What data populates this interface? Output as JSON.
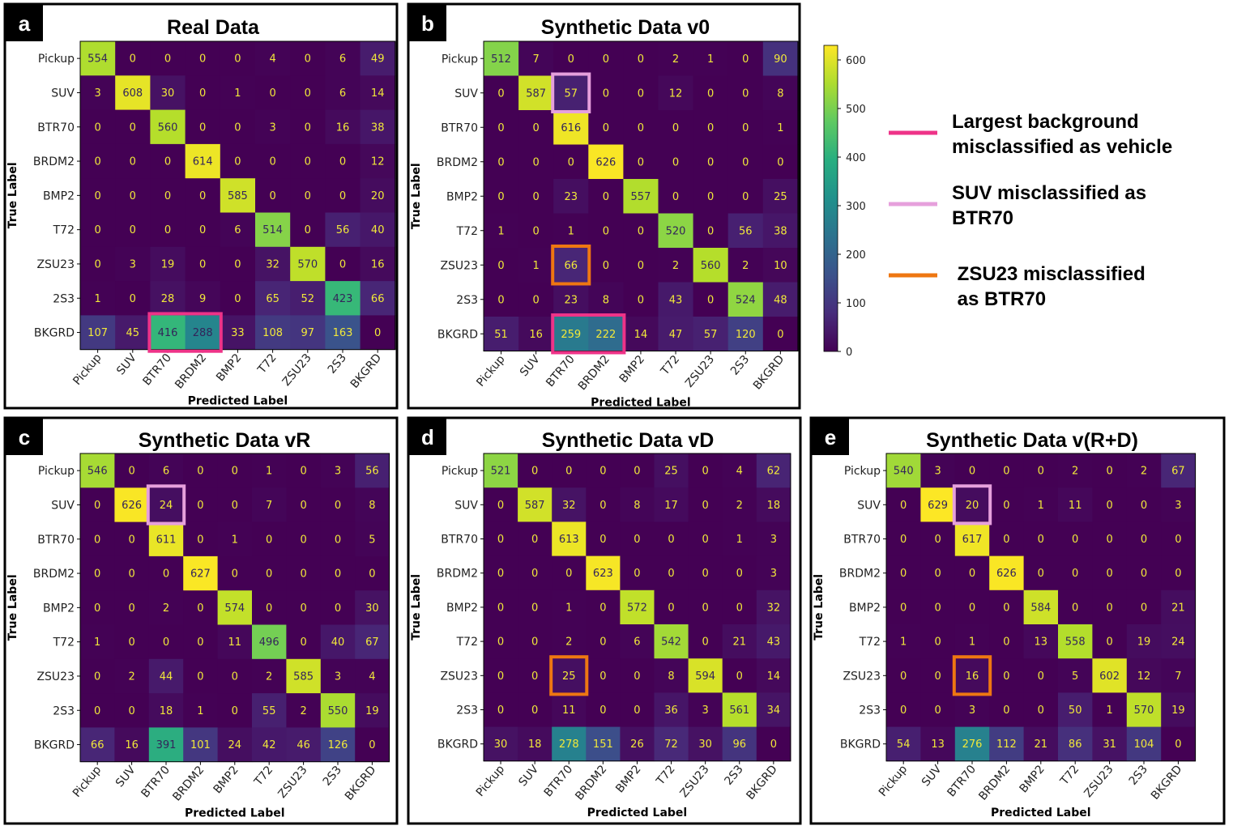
{
  "chart_data": [
    {
      "panel": "a",
      "type": "heatmap",
      "title": "Real Data",
      "xlabel": "Predicted Label",
      "ylabel": "True Label",
      "labels": [
        "Pickup",
        "SUV",
        "BTR70",
        "BRDM2",
        "BMP2",
        "T72",
        "ZSU23",
        "2S3",
        "BKGRD"
      ],
      "matrix": [
        [
          554,
          0,
          0,
          0,
          0,
          4,
          0,
          6,
          49
        ],
        [
          3,
          608,
          30,
          0,
          1,
          0,
          0,
          6,
          14
        ],
        [
          0,
          0,
          560,
          0,
          0,
          3,
          0,
          16,
          38
        ],
        [
          0,
          0,
          0,
          614,
          0,
          0,
          0,
          0,
          12
        ],
        [
          0,
          0,
          0,
          0,
          585,
          0,
          0,
          0,
          20
        ],
        [
          0,
          0,
          0,
          0,
          6,
          514,
          0,
          56,
          40
        ],
        [
          0,
          3,
          19,
          0,
          0,
          32,
          570,
          0,
          16
        ],
        [
          1,
          0,
          28,
          9,
          0,
          65,
          52,
          423,
          66
        ],
        [
          107,
          45,
          416,
          288,
          33,
          108,
          97,
          163,
          0
        ]
      ],
      "highlights": [
        {
          "legend": 0,
          "row": 8,
          "col": 2,
          "span": 2
        }
      ]
    },
    {
      "panel": "b",
      "type": "heatmap",
      "title": "Synthetic Data v0",
      "xlabel": "Predicted Label",
      "ylabel": "True Label",
      "labels": [
        "Pickup",
        "SUV",
        "BTR70",
        "BRDM2",
        "BMP2",
        "T72",
        "ZSU23",
        "2S3",
        "BKGRD"
      ],
      "matrix": [
        [
          512,
          7,
          0,
          0,
          0,
          2,
          1,
          0,
          90
        ],
        [
          0,
          587,
          57,
          0,
          0,
          12,
          0,
          0,
          8
        ],
        [
          0,
          0,
          616,
          0,
          0,
          0,
          0,
          0,
          1
        ],
        [
          0,
          0,
          0,
          626,
          0,
          0,
          0,
          0,
          0
        ],
        [
          0,
          0,
          23,
          0,
          557,
          0,
          0,
          0,
          25
        ],
        [
          1,
          0,
          1,
          0,
          0,
          520,
          0,
          56,
          38
        ],
        [
          0,
          1,
          66,
          0,
          0,
          2,
          560,
          2,
          10
        ],
        [
          0,
          0,
          23,
          8,
          0,
          43,
          0,
          524,
          48
        ],
        [
          51,
          16,
          259,
          222,
          14,
          47,
          57,
          120,
          0
        ]
      ],
      "highlights": [
        {
          "legend": 1,
          "row": 1,
          "col": 2,
          "span": 1
        },
        {
          "legend": 2,
          "row": 6,
          "col": 2,
          "span": 1
        },
        {
          "legend": 0,
          "row": 8,
          "col": 2,
          "span": 2
        }
      ]
    },
    {
      "panel": "c",
      "type": "heatmap",
      "title": "Synthetic Data vR",
      "xlabel": "Predicted Label",
      "ylabel": "True Label",
      "labels": [
        "Pickup",
        "SUV",
        "BTR70",
        "BRDM2",
        "BMP2",
        "T72",
        "ZSU23",
        "2S3",
        "BKGRD"
      ],
      "matrix": [
        [
          546,
          0,
          6,
          0,
          0,
          1,
          0,
          3,
          56
        ],
        [
          0,
          626,
          24,
          0,
          0,
          7,
          0,
          0,
          8
        ],
        [
          0,
          0,
          611,
          0,
          1,
          0,
          0,
          0,
          5
        ],
        [
          0,
          0,
          0,
          627,
          0,
          0,
          0,
          0,
          0
        ],
        [
          0,
          0,
          2,
          0,
          574,
          0,
          0,
          0,
          30
        ],
        [
          1,
          0,
          0,
          0,
          11,
          496,
          0,
          40,
          67
        ],
        [
          0,
          2,
          44,
          0,
          0,
          2,
          585,
          3,
          4
        ],
        [
          0,
          0,
          18,
          1,
          0,
          55,
          2,
          550,
          19
        ],
        [
          66,
          16,
          391,
          101,
          24,
          42,
          46,
          126,
          0
        ]
      ],
      "highlights": [
        {
          "legend": 1,
          "row": 1,
          "col": 2,
          "span": 1
        }
      ]
    },
    {
      "panel": "d",
      "type": "heatmap",
      "title": "Synthetic Data vD",
      "xlabel": "Predicted Label",
      "ylabel": "True Label",
      "labels": [
        "Pickup",
        "SUV",
        "BTR70",
        "BRDM2",
        "BMP2",
        "T72",
        "ZSU23",
        "2S3",
        "BKGRD"
      ],
      "matrix": [
        [
          521,
          0,
          0,
          0,
          0,
          25,
          0,
          4,
          62
        ],
        [
          0,
          587,
          32,
          0,
          8,
          17,
          0,
          2,
          18
        ],
        [
          0,
          0,
          613,
          0,
          0,
          0,
          0,
          1,
          3
        ],
        [
          0,
          0,
          0,
          623,
          0,
          0,
          0,
          0,
          3
        ],
        [
          0,
          0,
          1,
          0,
          572,
          0,
          0,
          0,
          32
        ],
        [
          0,
          0,
          2,
          0,
          6,
          542,
          0,
          21,
          43
        ],
        [
          0,
          0,
          25,
          0,
          0,
          8,
          594,
          0,
          14
        ],
        [
          0,
          0,
          11,
          0,
          0,
          36,
          3,
          561,
          34
        ],
        [
          30,
          18,
          278,
          151,
          26,
          72,
          30,
          96,
          0
        ]
      ],
      "highlights": [
        {
          "legend": 2,
          "row": 6,
          "col": 2,
          "span": 1
        }
      ]
    },
    {
      "panel": "e",
      "type": "heatmap",
      "title": "Synthetic Data v(R+D)",
      "xlabel": "Predicted Label",
      "ylabel": "True Label",
      "labels": [
        "Pickup",
        "SUV",
        "BTR70",
        "BRDM2",
        "BMP2",
        "T72",
        "ZSU23",
        "2S3",
        "BKGRD"
      ],
      "matrix": [
        [
          540,
          3,
          0,
          0,
          0,
          2,
          0,
          2,
          67
        ],
        [
          0,
          629,
          20,
          0,
          1,
          11,
          0,
          0,
          3
        ],
        [
          0,
          0,
          617,
          0,
          0,
          0,
          0,
          0,
          0
        ],
        [
          0,
          0,
          0,
          626,
          0,
          0,
          0,
          0,
          0
        ],
        [
          0,
          0,
          0,
          0,
          584,
          0,
          0,
          0,
          21
        ],
        [
          1,
          0,
          1,
          0,
          13,
          558,
          0,
          19,
          24
        ],
        [
          0,
          0,
          16,
          0,
          0,
          5,
          602,
          12,
          7
        ],
        [
          0,
          0,
          3,
          0,
          0,
          50,
          1,
          570,
          19
        ],
        [
          54,
          13,
          276,
          112,
          21,
          86,
          31,
          104,
          0
        ]
      ],
      "highlights": [
        {
          "legend": 1,
          "row": 1,
          "col": 2,
          "span": 1
        },
        {
          "legend": 2,
          "row": 6,
          "col": 2,
          "span": 1
        }
      ]
    }
  ],
  "colorbar": {
    "colormap": "viridis",
    "range": [
      0,
      630
    ],
    "ticks": [
      "600",
      "500",
      "400",
      "300",
      "200",
      "100",
      "0"
    ],
    "tick_values": [
      600,
      500,
      400,
      300,
      200,
      100,
      0
    ]
  },
  "legend": [
    {
      "color": "#ee3388",
      "line1": "Largest  background",
      "line2": "misclassified as vehicle"
    },
    {
      "color": "#e6a0dc",
      "line1": "SUV misclassified as",
      "line2": "BTR70"
    },
    {
      "color": "#ee7712",
      "line1": " ZSU23 misclassified",
      "line2": " as BTR70"
    }
  ]
}
